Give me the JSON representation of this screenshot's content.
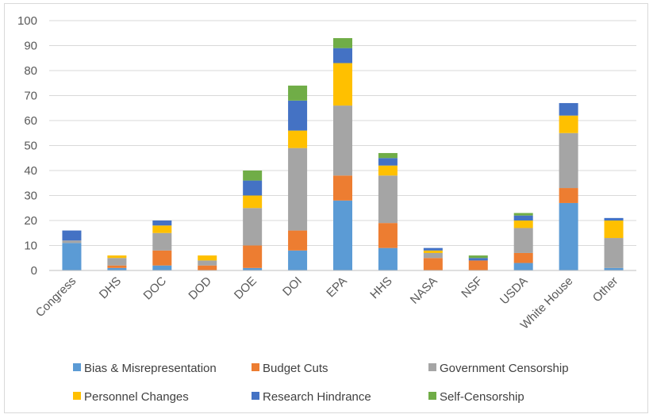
{
  "chart_data": {
    "type": "bar",
    "stacked": true,
    "title": "",
    "xlabel": "",
    "ylabel": "",
    "ylim": [
      0,
      100
    ],
    "yticks": [
      0,
      10,
      20,
      30,
      40,
      50,
      60,
      70,
      80,
      90,
      100
    ],
    "grid": true,
    "legend_position": "bottom",
    "categories": [
      "Congress",
      "DHS",
      "DOC",
      "DOD",
      "DOE",
      "DOI",
      "EPA",
      "HHS",
      "NASA",
      "NSF",
      "USDA",
      "White House",
      "Other"
    ],
    "series": [
      {
        "name": "Bias & Misrepresentation",
        "color": "#5B9BD5",
        "values": [
          11,
          1,
          2,
          0,
          1,
          8,
          28,
          9,
          0,
          0,
          3,
          27,
          1
        ]
      },
      {
        "name": "Budget Cuts",
        "color": "#ED7D31",
        "values": [
          0,
          1,
          6,
          2,
          9,
          8,
          10,
          10,
          5,
          4,
          4,
          6,
          0
        ]
      },
      {
        "name": "Government Censorship",
        "color": "#A5A5A5",
        "values": [
          1,
          3,
          7,
          2,
          15,
          33,
          28,
          19,
          2,
          0,
          10,
          22,
          12
        ]
      },
      {
        "name": "Personnel Changes",
        "color": "#FFC000",
        "values": [
          0,
          1,
          3,
          2,
          5,
          7,
          17,
          4,
          1,
          0,
          3,
          7,
          7
        ]
      },
      {
        "name": "Research Hindrance",
        "color": "#4472C4",
        "values": [
          4,
          0,
          2,
          0,
          6,
          12,
          6,
          3,
          1,
          1,
          2,
          5,
          1
        ]
      },
      {
        "name": "Self-Censorship",
        "color": "#70AD47",
        "values": [
          0,
          0,
          0,
          0,
          4,
          6,
          4,
          2,
          0,
          1,
          1,
          0,
          0
        ]
      }
    ]
  }
}
